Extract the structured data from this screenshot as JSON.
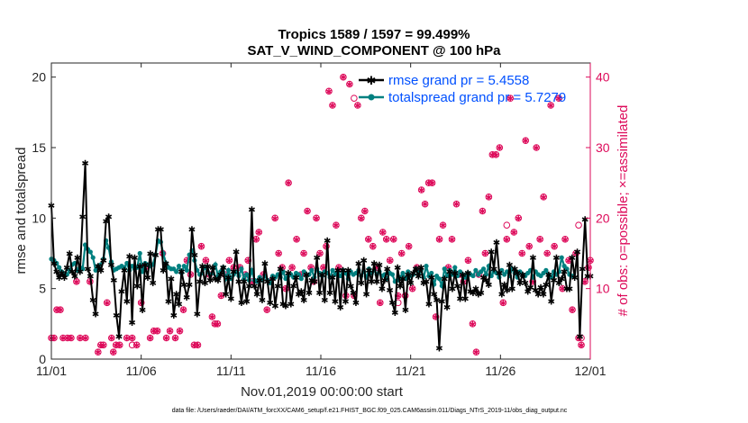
{
  "chart_data": {
    "type": "line",
    "title_line1": "Tropics 1589 / 1597 = 99.499%",
    "title_line2": "SAT_V_WIND_COMPONENT @ 100 hPa",
    "xlabel": "Nov.01,2019 00:00:00 start",
    "ylabel_left": "rmse and totalspread",
    "ylabel_right": "# of obs: o=possible; ×=assimilated",
    "xlim": [
      0,
      30
    ],
    "ylim_left": [
      0,
      21
    ],
    "ylim_right": [
      0,
      42
    ],
    "x_ticks": [
      0,
      5,
      10,
      15,
      20,
      25,
      30
    ],
    "x_tick_labels": [
      "11/01",
      "11/06",
      "11/11",
      "11/16",
      "11/21",
      "11/26",
      "12/01"
    ],
    "y_ticks_left": [
      0,
      5,
      10,
      15,
      20
    ],
    "y_tick_labels_left": [
      "0",
      "5",
      "10",
      "15",
      "20"
    ],
    "y_ticks_right": [
      10,
      20,
      30,
      40
    ],
    "y_tick_labels_right": [
      "10",
      "20",
      "30",
      "40"
    ],
    "colors": {
      "rmse": "#000000",
      "spread": "#008080",
      "obs": "#dd0a5a",
      "label": "#0050ff"
    },
    "legend": {
      "rmse_label": "rmse grand pr = 5.4558",
      "spread_label": "totalspread grand pr = 5.7279"
    },
    "footer": "data file: /Users/raeder/DAI/ATM_forcXX/CAM6_setup/f.e21.FHIST_BGC.f09_025.CAM6assim.011/Diags_NTrS_2019-11/obs_diag_output.nc",
    "rmse": [
      10.9,
      6.8,
      6.2,
      5.8,
      6.1,
      5.8,
      6.5,
      7.5,
      6.2,
      5.9,
      7.2,
      6.2,
      10.1,
      13.9,
      6.4,
      5.9,
      4.2,
      3.2,
      6.6,
      6.3,
      7.0,
      9.8,
      10.1,
      6.7,
      5.6,
      3.1,
      1.6,
      4.8,
      6.3,
      4.1,
      7.3,
      2.6,
      7.2,
      5.2,
      6.6,
      3.5,
      6.7,
      5.8,
      7.5,
      5.4,
      7.4,
      9.2,
      9.2,
      6.3,
      6.8,
      4.1,
      5.7,
      3.1,
      4.6,
      3.9,
      6.2,
      5.3,
      4.4,
      5.3,
      9.2,
      7.4,
      3.2,
      5.5,
      6.6,
      5.4,
      6.6,
      5.6,
      6.5,
      5.7,
      5.6,
      6.0,
      6.5,
      4.6,
      5.8,
      4.3,
      6.2,
      7.6,
      5.5,
      4.0,
      5.5,
      4.1,
      5.2,
      10.6,
      5.2,
      4.6,
      5.6,
      4.2,
      6.8,
      5.5,
      4.0,
      5.7,
      3.8,
      5.2,
      6.4,
      3.9,
      3.8,
      6.1,
      3.9,
      5.2,
      5.8,
      4.6,
      4.8,
      4.2,
      6.0,
      4.7,
      5.6,
      5.5,
      7.2,
      4.7,
      6.0,
      4.2,
      8.4,
      4.7,
      5.8,
      4.1,
      6.3,
      3.7,
      6.3,
      4.1,
      6.3,
      5.2,
      4.7,
      4.0,
      6.8,
      5.4,
      7.0,
      4.6,
      6.3,
      5.5,
      6.8,
      5.5,
      6.7,
      5.0,
      5.6,
      6.4,
      4.9,
      4.0,
      3.3,
      6.5,
      5.2,
      5.7,
      3.5,
      6.0,
      5.4,
      6.1,
      6.4,
      5.9,
      6.5,
      5.4,
      5.5,
      3.9,
      5.8,
      4.6,
      4.2,
      0.8,
      4.1,
      5.7,
      3.7,
      6.2,
      5.0,
      6.1,
      5.2,
      4.3,
      6.0,
      4.3,
      6.1,
      4.8,
      4.7,
      5.0,
      4.6,
      4.7,
      5.8,
      5.6,
      5.3,
      7.6,
      6.4,
      8.3,
      6.1,
      4.6,
      5.3,
      4.9,
      6.7,
      5.0,
      6.4,
      6.1,
      5.4,
      6.0,
      5.4,
      4.8,
      5.1,
      7.2,
      4.9,
      4.6,
      5.1,
      4.6,
      5.3,
      6.0,
      4.1,
      5.6,
      7.2,
      5.4,
      5.7,
      6.2,
      5.0,
      5.0,
      7.2,
      5.8,
      7.6,
      1.6,
      6.4,
      9.9,
      5.9,
      5.9
    ],
    "spread": [
      7.1,
      7.0,
      6.8,
      6.5,
      6.2,
      6.0,
      6.0,
      6.3,
      6.7,
      6.8,
      6.3,
      6.5,
      6.4,
      8.1,
      7.8,
      7.6,
      7.2,
      6.3,
      6.6,
      6.7,
      7.1,
      8.4,
      7.9,
      6.9,
      6.3,
      6.4,
      6.5,
      6.6,
      6.5,
      6.8,
      6.3,
      6.6,
      6.4,
      6.5,
      7.5,
      6.2,
      6.8,
      6.7,
      6.6,
      6.7,
      7.4,
      8.4,
      8.3,
      7.5,
      6.8,
      6.5,
      6.4,
      6.4,
      6.2,
      6.6,
      6.1,
      6.6,
      6.3,
      7.4,
      7.7,
      7.0,
      6.3,
      6.0,
      6.1,
      6.5,
      6.2,
      6.0,
      6.1,
      6.7,
      5.9,
      6.2,
      6.5,
      5.7,
      6.3,
      5.7,
      6.0,
      6.2,
      5.9,
      6.4,
      5.7,
      6.0,
      5.6,
      6.3,
      5.6,
      5.5,
      5.8,
      5.6,
      5.9,
      5.6,
      5.4,
      5.9,
      5.8,
      6.0,
      5.8,
      6.2,
      5.7,
      5.9,
      6.0,
      5.8,
      6.1,
      6.0,
      5.7,
      6.2,
      5.9,
      6.0,
      6.3,
      5.8,
      6.4,
      6.1,
      5.9,
      6.2,
      6.1,
      5.8,
      6.3,
      6.0,
      6.2,
      5.9,
      6.3,
      6.1,
      5.7,
      6.2,
      6.0,
      6.1,
      6.3,
      5.9,
      6.2,
      5.8,
      6.4,
      6.1,
      6.3,
      6.0,
      6.2,
      5.9,
      6.0,
      5.7,
      6.1,
      6.0,
      5.5,
      5.6,
      5.8,
      6.1,
      5.7,
      6.2,
      5.9,
      6.0,
      6.4,
      6.1,
      6.3,
      5.8,
      6.6,
      5.9,
      6.1,
      5.3,
      5.9,
      5.7,
      5.2,
      6.4,
      5.9,
      6.3,
      6.0,
      6.5,
      5.9,
      6.2,
      6.0,
      5.8,
      6.1,
      6.0,
      5.9,
      6.3,
      6.0,
      6.2,
      6.4,
      6.0,
      6.6,
      5.9,
      6.2,
      6.1,
      5.8,
      6.3,
      6.0,
      6.2,
      5.9,
      6.4,
      6.1,
      5.8,
      6.2,
      6.0,
      5.9,
      6.1,
      6.3,
      5.8,
      6.2,
      6.0,
      5.9,
      6.1,
      6.3,
      6.0,
      5.8,
      6.2,
      6.0,
      6.2,
      7.2,
      6.6,
      6.4,
      6.0,
      5.9
    ],
    "obs_assimilated": [
      [
        0.0,
        3
      ],
      [
        0.15,
        3
      ],
      [
        0.3,
        7
      ],
      [
        0.5,
        7
      ],
      [
        0.65,
        3
      ],
      [
        0.9,
        3
      ],
      [
        1.1,
        3
      ],
      [
        1.4,
        11
      ],
      [
        1.6,
        3
      ],
      [
        1.9,
        3
      ],
      [
        2.15,
        11
      ],
      [
        2.6,
        1
      ],
      [
        2.75,
        2
      ],
      [
        2.9,
        2
      ],
      [
        3.1,
        8
      ],
      [
        3.35,
        3
      ],
      [
        3.45,
        1
      ],
      [
        3.6,
        2
      ],
      [
        3.8,
        2
      ],
      [
        4.2,
        3
      ],
      [
        4.5,
        3
      ],
      [
        4.75,
        2
      ],
      [
        5.0,
        8
      ],
      [
        5.2,
        13
      ],
      [
        5.5,
        3
      ],
      [
        5.7,
        4
      ],
      [
        5.9,
        4
      ],
      [
        6.2,
        15
      ],
      [
        6.4,
        3
      ],
      [
        6.6,
        4
      ],
      [
        6.9,
        3
      ],
      [
        7.15,
        4
      ],
      [
        7.35,
        7
      ],
      [
        7.55,
        14
      ],
      [
        7.75,
        12
      ],
      [
        7.95,
        2
      ],
      [
        8.15,
        2
      ],
      [
        8.35,
        16
      ],
      [
        8.6,
        14
      ],
      [
        8.8,
        12
      ],
      [
        8.95,
        6
      ],
      [
        9.1,
        5
      ],
      [
        9.25,
        5
      ],
      [
        9.45,
        9
      ],
      [
        9.65,
        12
      ],
      [
        9.9,
        14
      ],
      [
        10.15,
        13
      ],
      [
        10.5,
        13
      ],
      [
        10.8,
        12
      ],
      [
        10.95,
        14
      ],
      [
        11.2,
        11
      ],
      [
        11.4,
        17
      ],
      [
        11.55,
        18
      ],
      [
        11.8,
        12
      ],
      [
        12.0,
        7
      ],
      [
        12.2,
        11
      ],
      [
        12.45,
        20
      ],
      [
        12.65,
        15
      ],
      [
        12.85,
        13
      ],
      [
        13.05,
        10
      ],
      [
        13.2,
        25
      ],
      [
        13.4,
        13
      ],
      [
        13.65,
        17
      ],
      [
        13.9,
        12
      ],
      [
        14.05,
        15
      ],
      [
        14.25,
        21
      ],
      [
        14.45,
        13
      ],
      [
        14.6,
        11
      ],
      [
        14.75,
        20
      ],
      [
        14.95,
        15
      ],
      [
        15.15,
        13
      ],
      [
        15.3,
        16
      ],
      [
        15.45,
        38
      ],
      [
        15.65,
        36
      ],
      [
        15.85,
        19
      ],
      [
        16.0,
        13
      ],
      [
        16.25,
        40
      ],
      [
        16.4,
        9
      ],
      [
        16.6,
        39
      ],
      [
        16.85,
        9
      ],
      [
        17.05,
        36
      ],
      [
        17.25,
        20
      ],
      [
        17.45,
        21
      ],
      [
        17.65,
        17
      ],
      [
        17.9,
        16
      ],
      [
        18.1,
        13
      ],
      [
        18.3,
        8
      ],
      [
        18.45,
        18
      ],
      [
        18.65,
        17
      ],
      [
        18.85,
        14
      ],
      [
        19.05,
        17
      ],
      [
        19.3,
        9
      ],
      [
        19.5,
        15
      ],
      [
        19.7,
        9
      ],
      [
        19.9,
        16
      ],
      [
        20.1,
        10
      ],
      [
        20.35,
        13
      ],
      [
        20.6,
        24
      ],
      [
        20.8,
        22
      ],
      [
        21.0,
        25
      ],
      [
        21.2,
        25
      ],
      [
        21.4,
        6
      ],
      [
        21.6,
        17
      ],
      [
        21.8,
        19
      ],
      [
        22.1,
        13
      ],
      [
        22.3,
        17
      ],
      [
        22.55,
        22
      ],
      [
        22.75,
        12
      ],
      [
        22.95,
        11
      ],
      [
        23.2,
        14
      ],
      [
        23.45,
        5
      ],
      [
        23.65,
        1
      ],
      [
        23.8,
        12
      ],
      [
        24.0,
        21
      ],
      [
        24.15,
        15
      ],
      [
        24.35,
        23
      ],
      [
        24.55,
        29
      ],
      [
        24.75,
        29
      ],
      [
        24.95,
        30
      ],
      [
        25.15,
        8
      ],
      [
        25.35,
        17
      ],
      [
        25.55,
        37
      ],
      [
        25.75,
        18
      ],
      [
        26.0,
        20
      ],
      [
        26.2,
        15
      ],
      [
        26.4,
        31
      ],
      [
        26.6,
        16
      ],
      [
        26.8,
        11
      ],
      [
        27.0,
        30
      ],
      [
        27.2,
        17
      ],
      [
        27.4,
        23
      ],
      [
        27.6,
        15
      ],
      [
        27.8,
        36
      ],
      [
        28.0,
        16
      ],
      [
        28.25,
        37
      ],
      [
        28.45,
        10
      ],
      [
        28.6,
        17
      ],
      [
        28.8,
        14
      ],
      [
        29.0,
        7
      ],
      [
        29.2,
        15
      ],
      [
        29.35,
        3
      ],
      [
        29.5,
        2
      ],
      [
        29.7,
        11
      ],
      [
        29.9,
        13
      ],
      [
        30.0,
        14
      ]
    ],
    "obs_possible_only": [
      [
        4.5,
        2
      ],
      [
        16.85,
        37
      ],
      [
        19.3,
        8
      ],
      [
        25.35,
        19
      ],
      [
        29.35,
        19
      ],
      [
        29.5,
        3
      ]
    ]
  }
}
